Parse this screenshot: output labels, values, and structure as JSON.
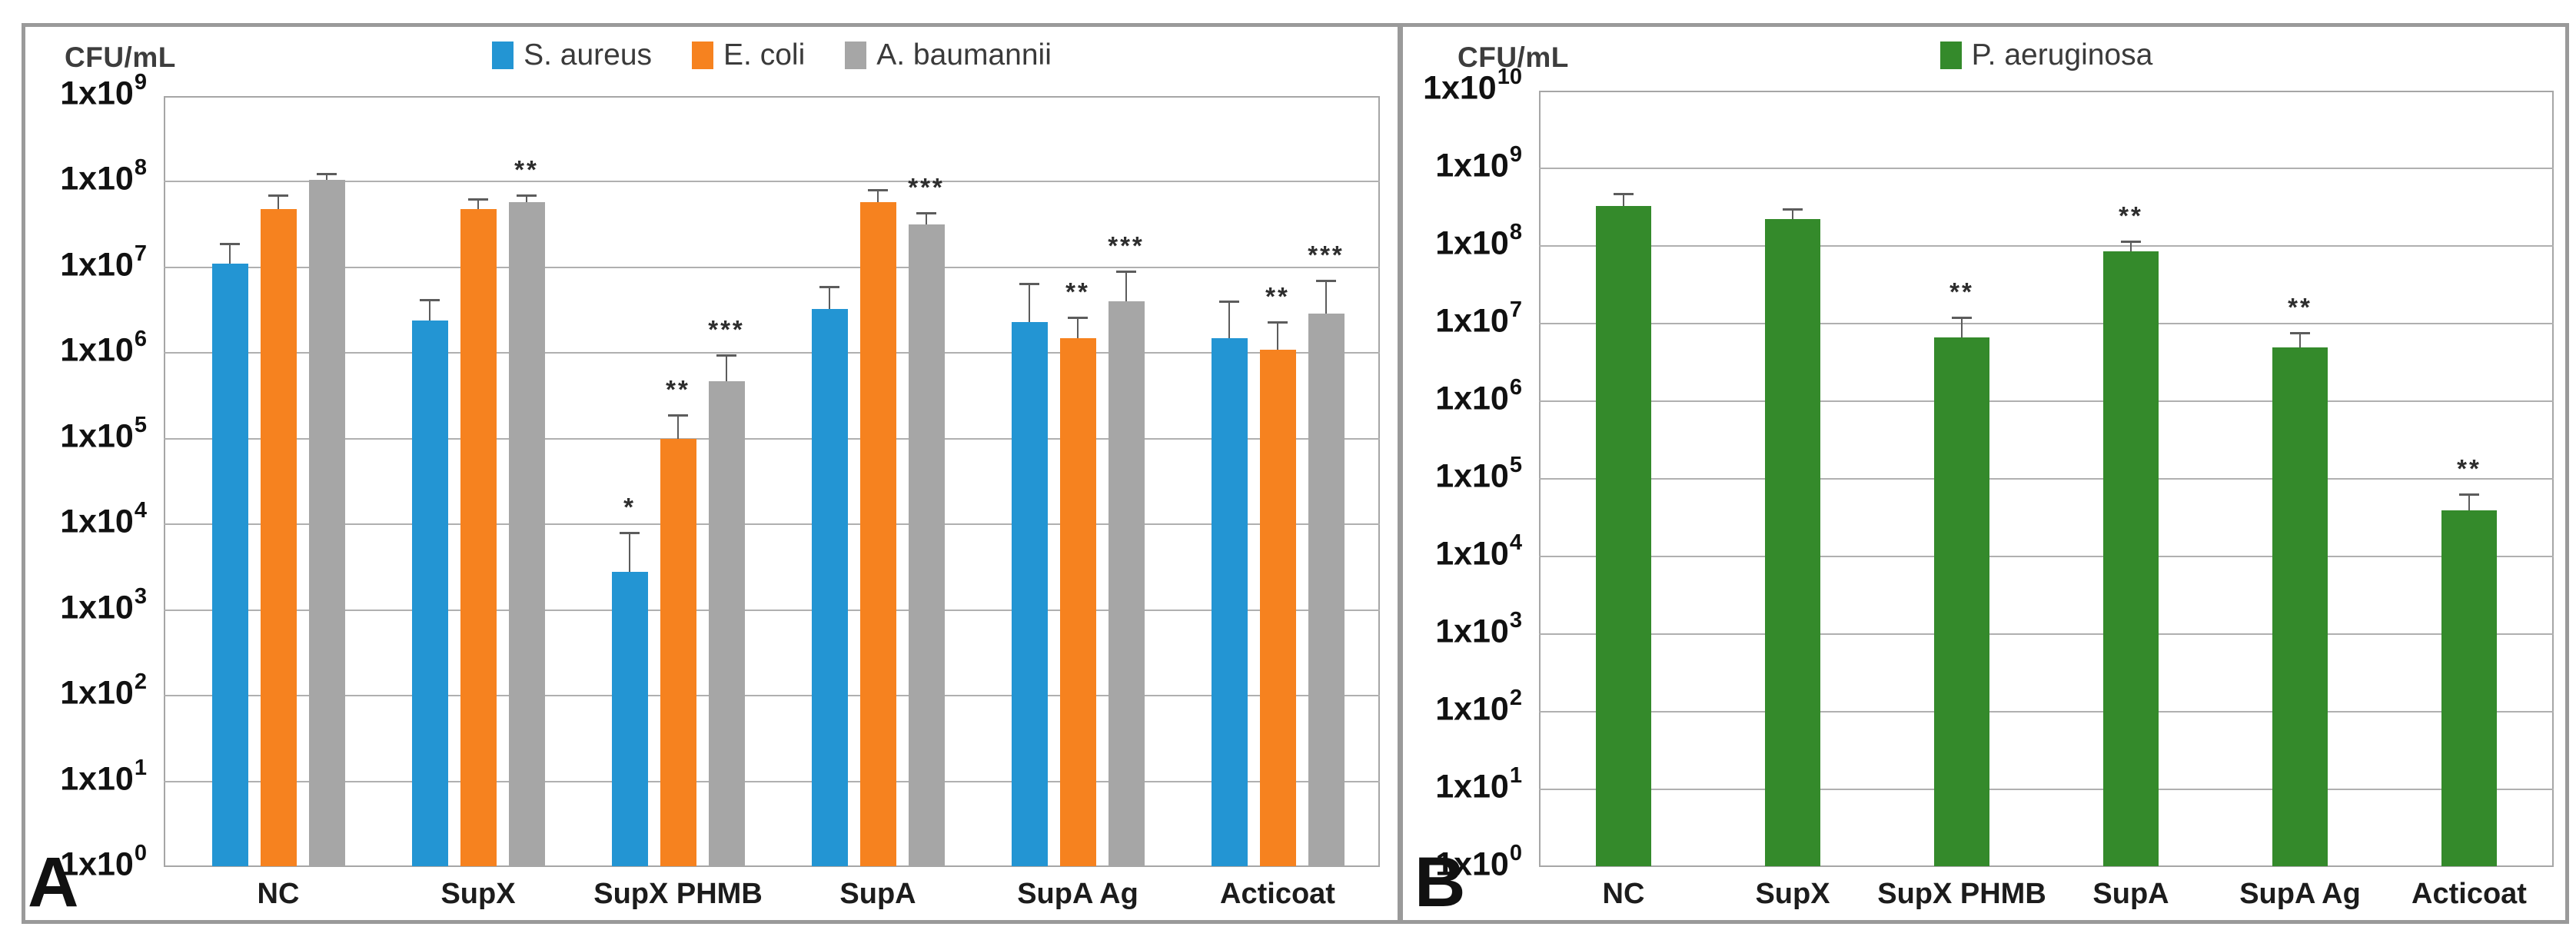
{
  "figure": {
    "panel_a_label": "A",
    "panel_b_label": "B",
    "unit_label": "CFU/mL",
    "tick_prefix": "1x10"
  },
  "chart_data": [
    {
      "type": "bar",
      "panel": "A",
      "y_scale": "log10",
      "unit_label": "CFU/mL",
      "y_axis": {
        "min_exponent": 0,
        "max_exponent": 9,
        "tick_format": "1x10^n"
      },
      "grid": true,
      "legend_position": "top-center",
      "categories": [
        "NC",
        "SupX",
        "SupX PHMB",
        "SupA",
        "SupA Ag",
        "Acticoat"
      ],
      "series": [
        {
          "name": "S. aureus",
          "color": "#2395D3",
          "values": [
            11000000.0,
            2400000.0,
            2800,
            3300000.0,
            2300000.0,
            1500000.0
          ],
          "error_top": [
            19000000.0,
            4200000.0,
            8000,
            6000000.0,
            6500000.0,
            4000000.0
          ],
          "significance": [
            "",
            "",
            "*",
            "",
            "",
            ""
          ]
        },
        {
          "name": "E. coli",
          "color": "#F6821F",
          "values": [
            48000000.0,
            48000000.0,
            100000.0,
            58000000.0,
            1500000.0,
            1100000.0
          ],
          "error_top": [
            70000000.0,
            63000000.0,
            190000.0,
            80000000.0,
            2600000.0,
            2300000.0
          ],
          "significance": [
            "",
            "",
            "**",
            "",
            "**",
            "**"
          ]
        },
        {
          "name": "A. baumannii",
          "color": "#A6A6A6",
          "values": [
            105000000.0,
            58000000.0,
            470000.0,
            32000000.0,
            4000000.0,
            2900000.0
          ],
          "error_top": [
            125000000.0,
            70000000.0,
            950000.0,
            43000000.0,
            9000000.0,
            7000000.0
          ],
          "significance": [
            "",
            "**",
            "***",
            "***",
            "***",
            "***"
          ]
        }
      ]
    },
    {
      "type": "bar",
      "panel": "B",
      "y_scale": "log10",
      "unit_label": "CFU/mL",
      "y_axis": {
        "min_exponent": 0,
        "max_exponent": 10,
        "tick_format": "1x10^n"
      },
      "grid": true,
      "legend_position": "top-center",
      "categories": [
        "NC",
        "SupX",
        "SupX PHMB",
        "SupA",
        "SupA Ag",
        "Acticoat"
      ],
      "series": [
        {
          "name": "P. aeruginosa",
          "color": "#348A2B",
          "values": [
            330000000.0,
            220000000.0,
            6600000.0,
            86000000.0,
            4900000.0,
            39000
          ],
          "error_top": [
            470000000.0,
            300000000.0,
            12000000.0,
            115000000.0,
            7600000.0,
            63000
          ],
          "significance": [
            "",
            "",
            "**",
            "**",
            "**",
            "**"
          ]
        }
      ]
    }
  ]
}
